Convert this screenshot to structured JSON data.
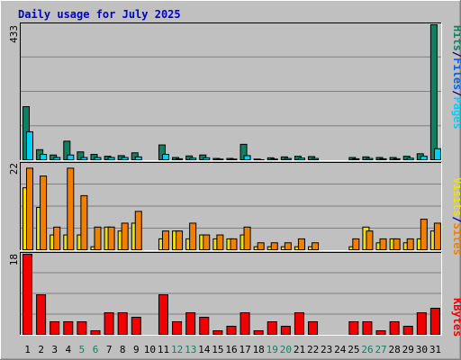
{
  "title": "Daily usage for July 2025",
  "colors": {
    "background": "#C0C0C0",
    "title": "#0000C0",
    "hits": "#108060",
    "files": "#00D0F8",
    "pages": "#00D0F8",
    "visits": "#F0E000",
    "sites": "#F08000",
    "kbytes": "#F00000",
    "weekend_day_label": "#108060",
    "day_label": "#0000C0",
    "grid": "#808080"
  },
  "chart_data": [
    {
      "type": "bar",
      "panel": "hits-files-pages",
      "title": "Daily usage for July 2025",
      "ylabel_parts": [
        "Pages",
        "/",
        "Files",
        "/",
        "Hits"
      ],
      "ymax_label": "433",
      "ylim": [
        0,
        433
      ],
      "grid": true,
      "categories": [
        "1",
        "2",
        "3",
        "4",
        "5",
        "6",
        "7",
        "8",
        "9",
        "10",
        "11",
        "12",
        "13",
        "14",
        "15",
        "16",
        "17",
        "18",
        "19",
        "20",
        "21",
        "22",
        "23",
        "24",
        "25",
        "26",
        "27",
        "28",
        "29",
        "30",
        "31"
      ],
      "series": [
        {
          "name": "Hits",
          "values": [
            172,
            35,
            18,
            62,
            28,
            20,
            14,
            16,
            25,
            0,
            50,
            10,
            15,
            18,
            7,
            7,
            52,
            5,
            9,
            12,
            14,
            13,
            0,
            0,
            10,
            12,
            10,
            10,
            14,
            22,
            433
          ]
        },
        {
          "name": "Files",
          "values": [
            92,
            20,
            10,
            18,
            10,
            10,
            10,
            10,
            12,
            0,
            20,
            6,
            8,
            9,
            5,
            5,
            16,
            3,
            5,
            7,
            8,
            7,
            0,
            0,
            6,
            7,
            6,
            6,
            8,
            14,
            38
          ]
        },
        {
          "name": "Pages",
          "values": [
            0,
            0,
            0,
            0,
            0,
            0,
            0,
            0,
            0,
            0,
            0,
            0,
            0,
            0,
            0,
            0,
            0,
            0,
            0,
            0,
            0,
            0,
            0,
            0,
            0,
            0,
            0,
            0,
            0,
            0,
            0
          ]
        }
      ]
    },
    {
      "type": "bar",
      "panel": "visits-sites",
      "ylabel_parts": [
        "Sites",
        "/",
        "Visits"
      ],
      "ymax_label": "22",
      "ylim": [
        0,
        22
      ],
      "grid": true,
      "categories": [
        "1",
        "2",
        "3",
        "4",
        "5",
        "6",
        "7",
        "8",
        "9",
        "10",
        "11",
        "12",
        "13",
        "14",
        "15",
        "16",
        "17",
        "18",
        "19",
        "20",
        "21",
        "22",
        "23",
        "24",
        "25",
        "26",
        "27",
        "28",
        "29",
        "30",
        "31"
      ],
      "series": [
        {
          "name": "Visits",
          "values": [
            16,
            11,
            4,
            4,
            4,
            1,
            6,
            5,
            7,
            0,
            3,
            5,
            3,
            4,
            3,
            3,
            4,
            1,
            1,
            1,
            1,
            1,
            0,
            0,
            1,
            6,
            2,
            3,
            2,
            3,
            5
          ]
        },
        {
          "name": "Sites",
          "values": [
            21,
            19,
            6,
            21,
            14,
            6,
            6,
            7,
            10,
            0,
            5,
            5,
            7,
            4,
            4,
            3,
            6,
            2,
            2,
            2,
            3,
            2,
            0,
            0,
            3,
            5,
            3,
            3,
            3,
            8,
            7
          ]
        }
      ]
    },
    {
      "type": "bar",
      "panel": "kbytes",
      "ylabel_parts": [
        "KBytes"
      ],
      "ymax_label": "18",
      "ylim": [
        0,
        18
      ],
      "grid": true,
      "categories": [
        "1",
        "2",
        "3",
        "4",
        "5",
        "6",
        "7",
        "8",
        "9",
        "10",
        "11",
        "12",
        "13",
        "14",
        "15",
        "16",
        "17",
        "18",
        "19",
        "20",
        "21",
        "22",
        "23",
        "24",
        "25",
        "26",
        "27",
        "28",
        "29",
        "30",
        "31"
      ],
      "weekend_days": [
        "5",
        "6",
        "12",
        "13",
        "19",
        "20",
        "26",
        "27"
      ],
      "series": [
        {
          "name": "KBytes",
          "values": [
            18,
            9,
            3,
            3,
            3,
            1,
            5,
            5,
            4,
            0,
            9,
            3,
            5,
            4,
            1,
            2,
            5,
            1,
            3,
            2,
            5,
            3,
            0,
            0,
            3,
            3,
            1,
            3,
            2,
            5,
            6
          ]
        }
      ]
    }
  ]
}
